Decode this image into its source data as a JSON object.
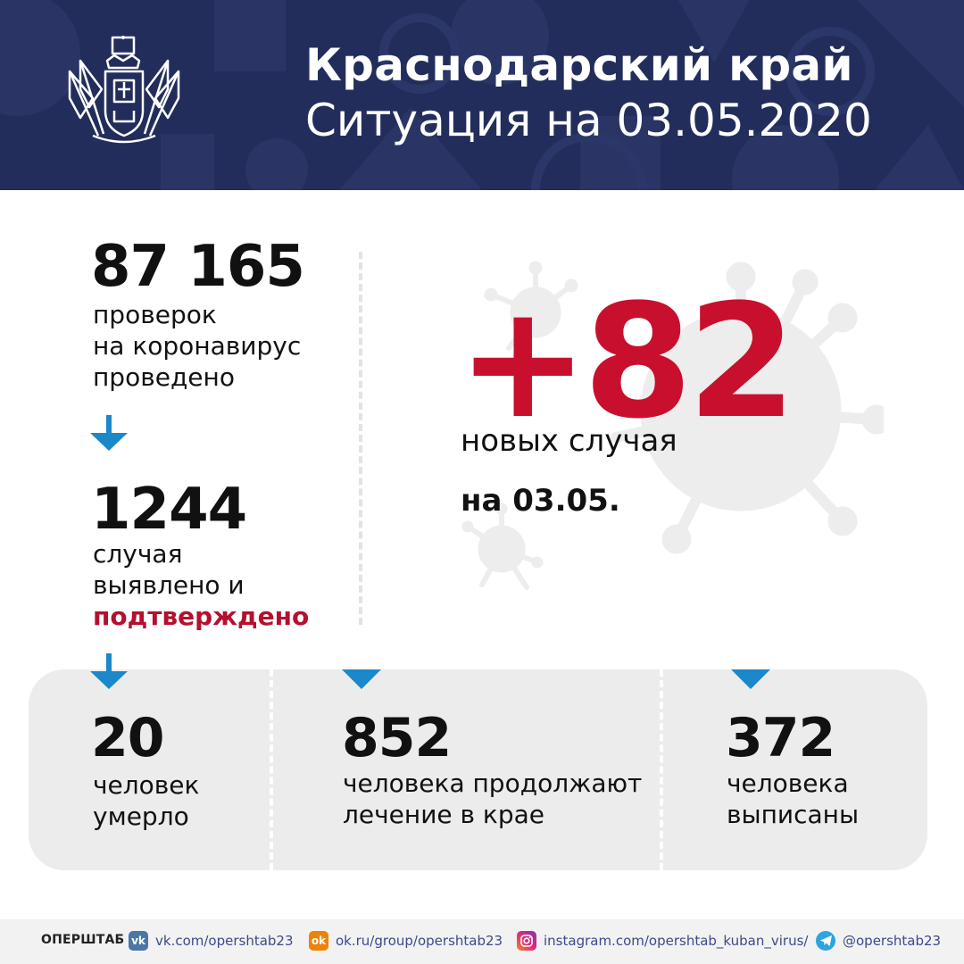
{
  "header": {
    "title": "Краснодарский край",
    "subtitle": "Ситуация на 03.05.2020",
    "background_color": "#232d5c",
    "emblem": "krasnodar-coat-of-arms"
  },
  "stats": {
    "tests": {
      "value": "87 165",
      "label_lines": [
        "проверок",
        "на коронавирус",
        "проведено"
      ]
    },
    "cases": {
      "value": "1244",
      "label_lines": [
        "случая",
        "выявлено и"
      ],
      "label_emphasis": "подтверждено"
    },
    "new_cases": {
      "value": "+82",
      "label": "новых случая",
      "date": "на 03.05.",
      "color": "#c8102e"
    }
  },
  "panel": {
    "deaths": {
      "value": "20",
      "label_lines": [
        "человек",
        "умерло"
      ]
    },
    "treatment": {
      "value": "852",
      "label_lines": [
        "человека продолжают",
        "лечение в крае"
      ]
    },
    "discharged": {
      "value": "372",
      "label_lines": [
        "человека",
        "выписаны"
      ]
    }
  },
  "footer": {
    "brand": "ОПЕРШТАБ",
    "links": [
      {
        "icon": "vk-icon",
        "text": "vk.com/opershtab23"
      },
      {
        "icon": "ok-icon",
        "text": "ok.ru/group/opershtab23"
      },
      {
        "icon": "instagram-icon",
        "text": "instagram.com/opershtab_kuban_virus/"
      },
      {
        "icon": "telegram-icon",
        "text": "@opershtab23"
      }
    ]
  },
  "colors": {
    "accent_blue": "#1a88c9",
    "accent_red": "#c8102e",
    "panel_gray": "#ececec"
  }
}
